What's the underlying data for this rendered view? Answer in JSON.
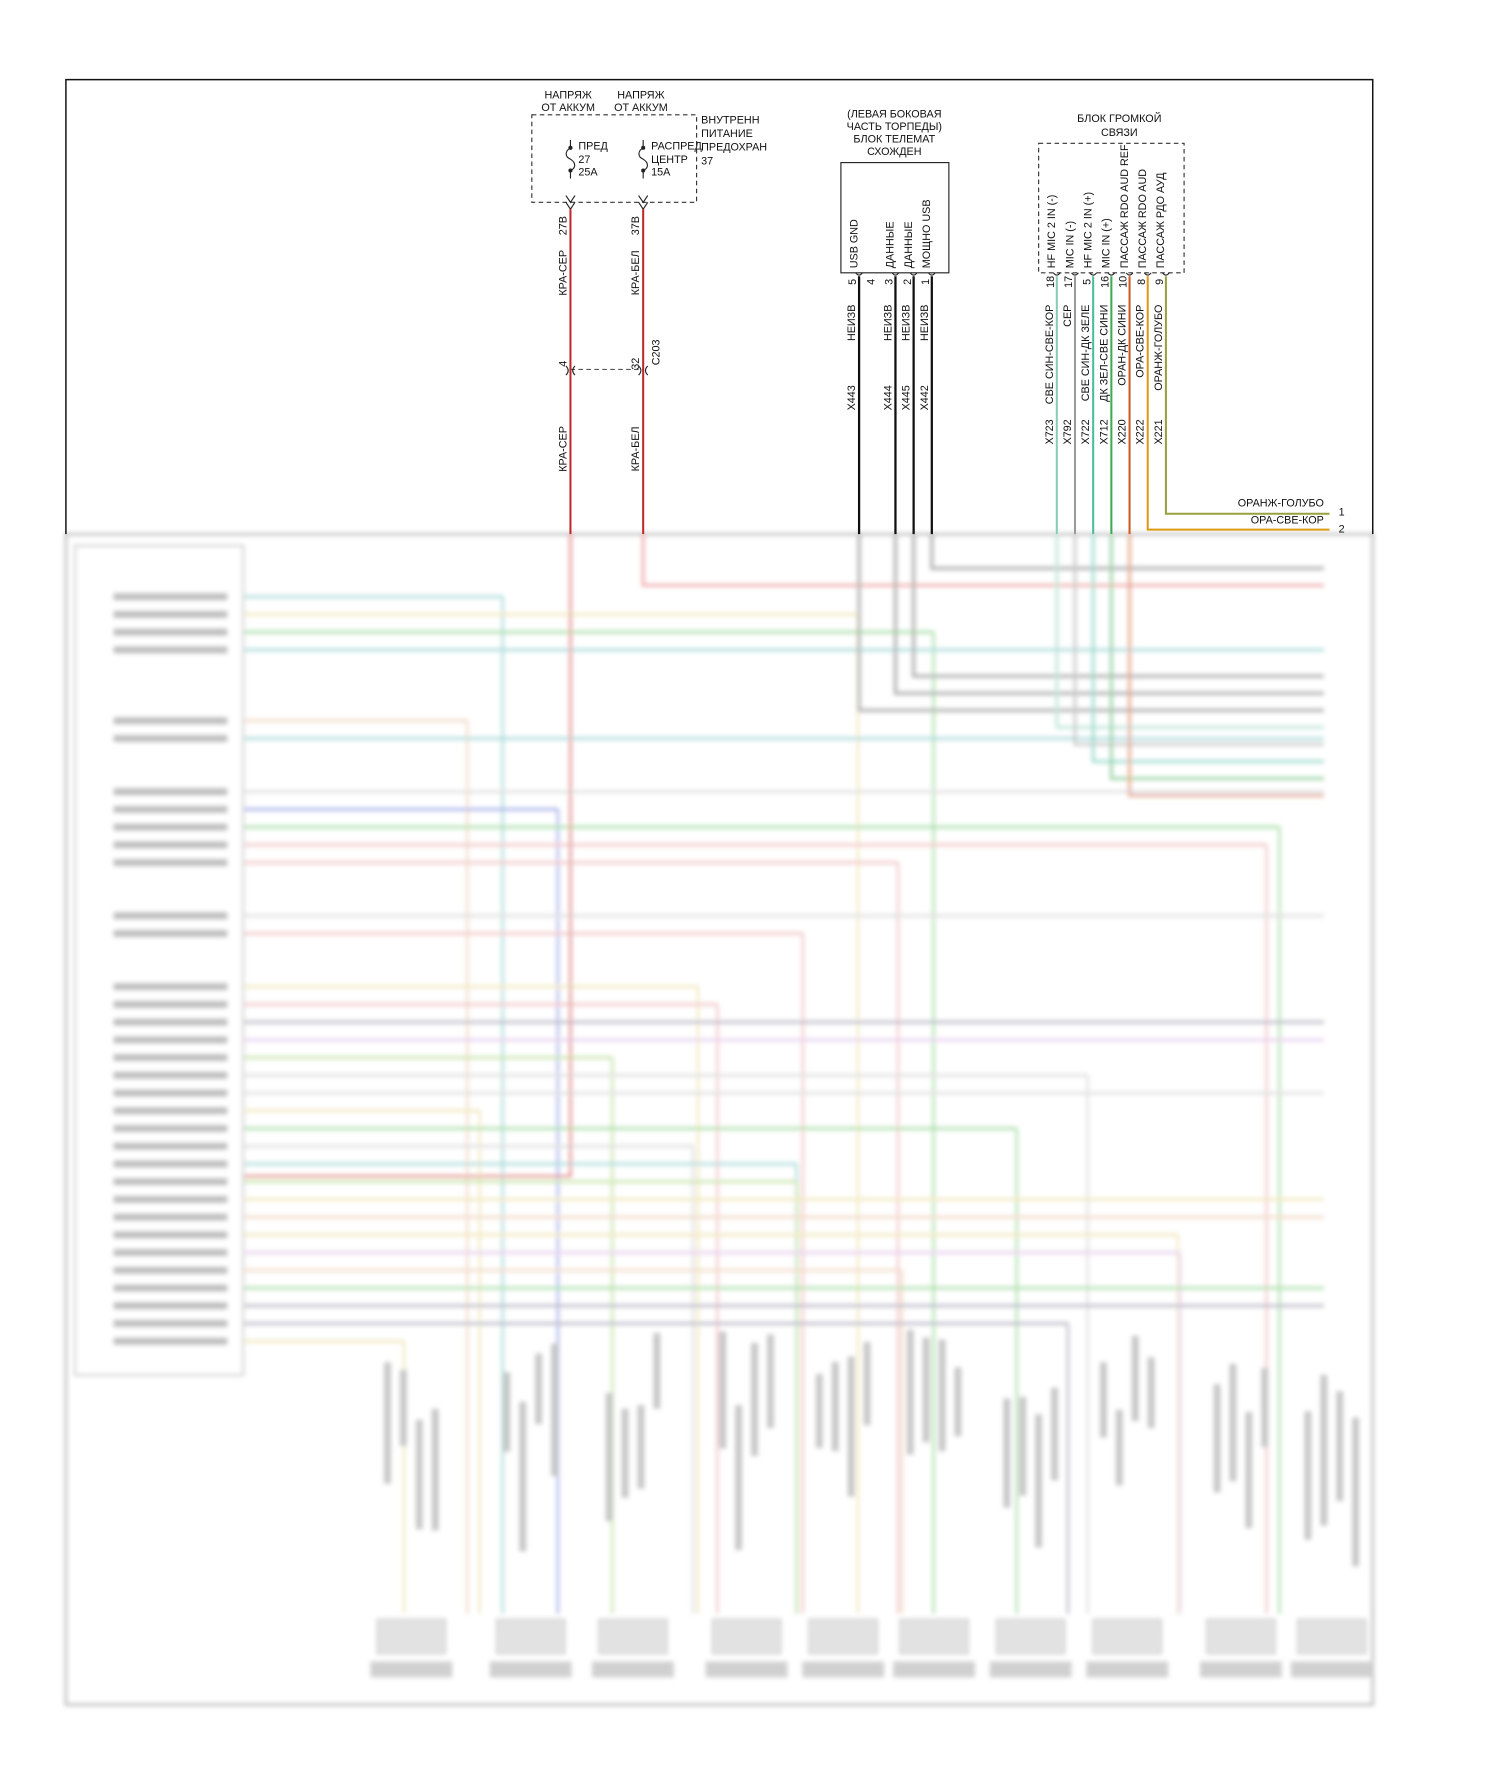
{
  "power_feeds": [
    {
      "label_1": "НАПРЯЖ",
      "label_2": "ОТ АККУМ",
      "fuse_1": "ПРЕД",
      "fuse_2": "27",
      "fuse_3": "25A",
      "pin": "27B",
      "wire": "КРА-СЕР",
      "conn_pin": "4",
      "wire_below": "КРА-СЕР"
    },
    {
      "label_1": "НАПРЯЖ",
      "label_2": "ОТ АККУМ",
      "fuse_1": "РАСПРЕД",
      "fuse_2": "ЦЕНТР",
      "fuse_3": "15A",
      "pin": "37B",
      "wire": "КРА-БЕЛ",
      "conn_pin": "32",
      "wire_below": "КРА-БЕЛ"
    }
  ],
  "fuse_box_label": [
    "ВНУТРЕНН",
    "ПИТАНИЕ",
    "ПРЕДОХРАН",
    "37"
  ],
  "connector": "C203",
  "telematics": {
    "title": [
      "(ЛЕВАЯ БОКОВАЯ",
      "ЧАСТЬ ТОРПЕДЫ)",
      "БЛОК ТЕЛЕМАТ",
      "СХОЖДЕН"
    ],
    "pins": [
      {
        "num": "5",
        "name": "USB GND",
        "wire": "НЕИЗВ",
        "circuit": "X443"
      },
      {
        "num": "4"
      },
      {
        "num": "3",
        "name": "ДАННЫЕ",
        "wire": "НЕИЗВ",
        "circuit": "X444"
      },
      {
        "num": "2",
        "name": "ДАННЫЕ",
        "wire": "НЕИЗВ",
        "circuit": "X445"
      },
      {
        "num": "1",
        "name": "МОЩНО USB",
        "wire": "НЕИЗВ",
        "circuit": "X442"
      }
    ]
  },
  "handsfree": {
    "title": [
      "БЛОК ГРОМКОЙ",
      "СВЯЗИ"
    ],
    "pins": [
      {
        "num": "18",
        "name": "HF MIC 2 IN (-)",
        "wire": "СВЕ СИН-СВЕ-КОР",
        "circuit": "X723"
      },
      {
        "num": "17",
        "name": "MIC IN (-)",
        "wire": "СЕР",
        "circuit": "X792"
      },
      {
        "num": "5",
        "name": "HF MIC 2 IN (+)",
        "wire": "СВЕ СИН-ДК ЗЕЛЕ",
        "circuit": "X722"
      },
      {
        "num": "16",
        "name": "MIC IN (+)",
        "wire": "ДК ЗЕЛ-СВЕ СИНИ",
        "circuit": "X712"
      },
      {
        "num": "10",
        "name": "ПАССАЖ RDO AUD REF",
        "wire": "ОРАН-ДК СИНИ",
        "circuit": "X220"
      },
      {
        "num": "8",
        "name": "ПАССАЖ RDO AUD",
        "wire": "ОРА-СВЕ-КОР",
        "circuit": "X222"
      },
      {
        "num": "9",
        "name": "ПАССАЖ РДО АУД",
        "wire": "ОРАНЖ-ГОЛУБО",
        "circuit": "X221"
      }
    ]
  },
  "right_terminals": [
    {
      "label": "ОРАНЖ-ГОЛУБО",
      "num": "1"
    },
    {
      "label": "ОРА-СВЕ-КОР",
      "num": "2"
    }
  ]
}
